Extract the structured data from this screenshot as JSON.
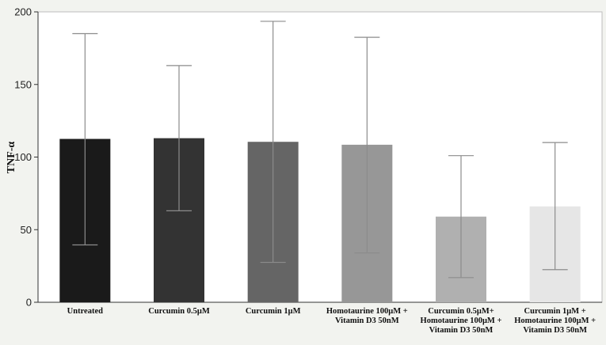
{
  "chart_data": {
    "type": "bar",
    "ylabel": "TNF-α",
    "xlabel": "",
    "ylim": [
      0,
      200
    ],
    "yticks": [
      "0",
      "50",
      "100",
      "150",
      "200"
    ],
    "grid": false,
    "categories": [
      [
        "Untreated"
      ],
      [
        "Curcumin 0.5μM"
      ],
      [
        "Curcumin 1μM"
      ],
      [
        "Homotaurine 100μM +",
        "Vitamin D3 50nM"
      ],
      [
        "Curcumin 0.5μM+",
        "Homotaurine 100μM +",
        "Vitamin D3 50nM"
      ],
      [
        "Curcumin 1μM +",
        "Homotaurine 100μM +",
        "Vitamin D3 50nM"
      ]
    ],
    "values": [
      112.5,
      113,
      110.5,
      108.5,
      59,
      66
    ],
    "error_low": [
      39.5,
      63,
      27.5,
      34,
      17,
      22.5
    ],
    "error_high": [
      185,
      163,
      193.5,
      182.5,
      101,
      110
    ],
    "colors": [
      "#1a1a1a",
      "#333333",
      "#656565",
      "#979797",
      "#b0b0b0",
      "#e6e6e6"
    ],
    "plot_background": "#ffffff",
    "outer_background": "#f2f3ef",
    "error_bar_color": "#8c8c8c"
  }
}
